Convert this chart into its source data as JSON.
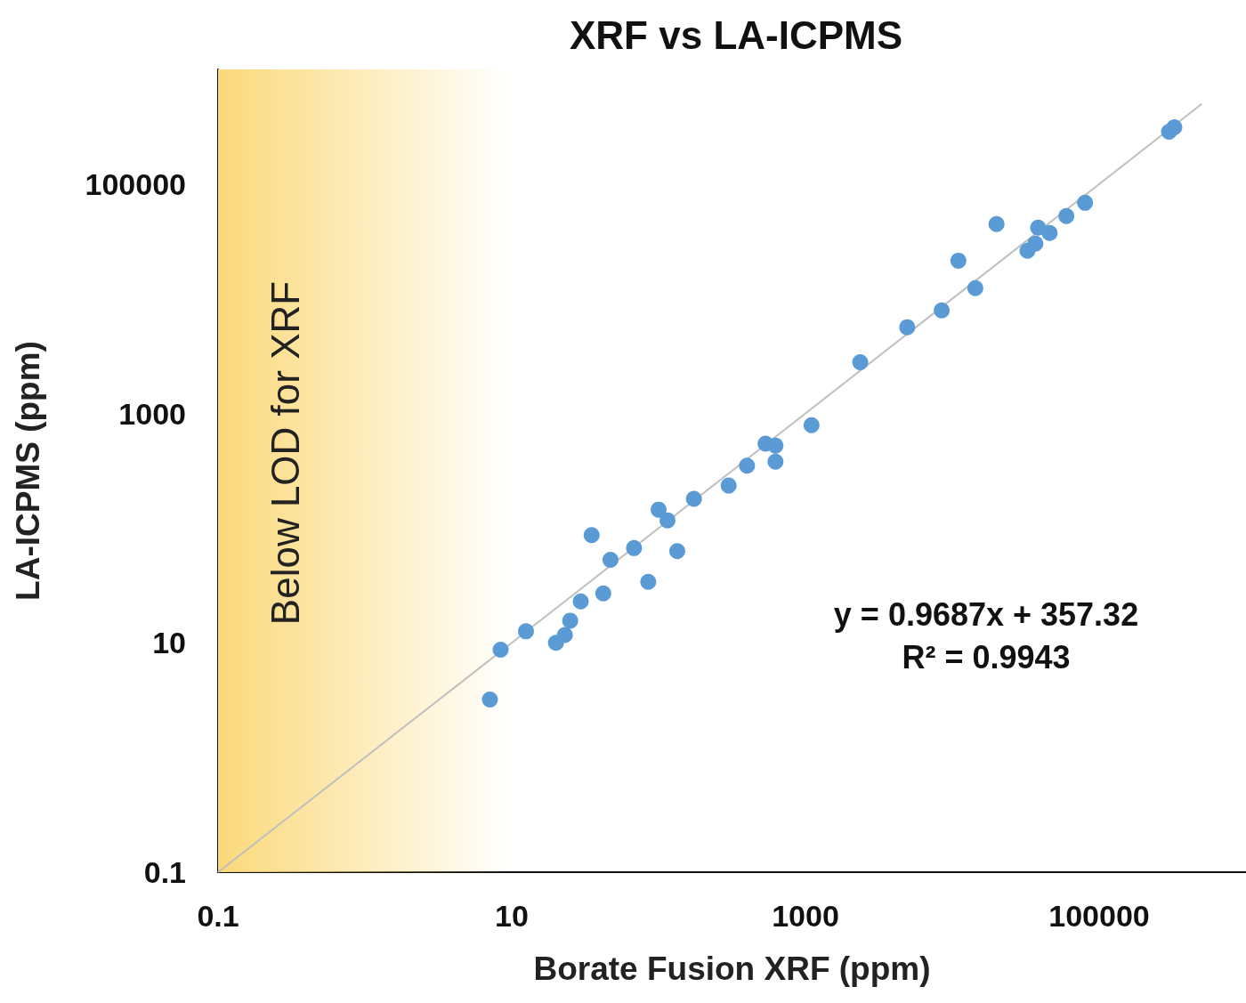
{
  "chart_data": {
    "type": "scatter",
    "title": "XRF vs LA-ICPMS",
    "xlabel": "Borate Fusion XRF (ppm)",
    "ylabel": "LA-ICPMS (ppm)",
    "log": "xy",
    "xlim": [
      0.1,
      1000000
    ],
    "ylim": [
      0.1,
      1000000
    ],
    "xticks": [
      0.1,
      10,
      1000,
      100000
    ],
    "yticks": [
      0.1,
      10,
      1000,
      100000
    ],
    "grid": false,
    "marker": "circle",
    "series": [
      {
        "color": "#5b9bd5",
        "x": [
          7.1,
          8.4,
          12.5,
          20,
          23,
          25,
          29.5,
          35,
          42,
          47,
          68,
          85,
          100,
          115,
          134,
          174,
          300,
          400,
          535,
          625,
          625,
          1100,
          2360,
          4930,
          8470,
          11000,
          14350,
          20000,
          32500,
          36800,
          38400,
          46000,
          59800,
          80200,
          299000,
          325000
        ],
        "values": [
          3.2,
          8.7,
          12.6,
          10,
          11.7,
          15.6,
          23,
          87,
          27,
          53,
          67,
          34,
          145,
          117,
          63,
          180,
          235,
          350,
          545,
          525,
          380,
          790,
          2800,
          5650,
          7930,
          21500,
          12400,
          44800,
          26200,
          30300,
          41700,
          37500,
          52600,
          68700,
          286000,
          313000
        ]
      },
      {
        "type": "line",
        "color": "#bfbfbf",
        "x": [
          0.1,
          500000
        ],
        "values": [
          0.1,
          500000
        ],
        "marker": "none"
      }
    ],
    "bands": [
      {
        "axis": "x",
        "from": 0.1,
        "to": 10,
        "label": "Below LOD for XRF",
        "color": "#fbd97a"
      }
    ],
    "annotations": [
      "y = 0.9687x + 357.32",
      "R² = 0.9943"
    ]
  }
}
